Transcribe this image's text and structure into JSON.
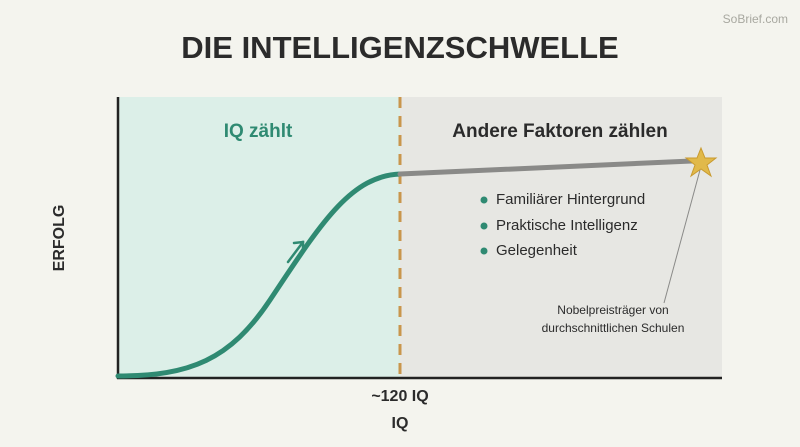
{
  "watermark": "SoBrief.com",
  "title": "DIE INTELLIGENZSCHWELLE",
  "y_axis_label": "ERFOLG",
  "x_axis_label": "IQ",
  "threshold_label": "~120 IQ",
  "left_region_label": "IQ zählt",
  "right_region_label": "Andere Faktoren zählen",
  "bullets": [
    "Familiärer Hintergrund",
    "Praktische Intelligenz",
    "Gelegenheit"
  ],
  "annotation": [
    "Nobelpreisträger von",
    "durchschnittlichen Schulen"
  ]
}
